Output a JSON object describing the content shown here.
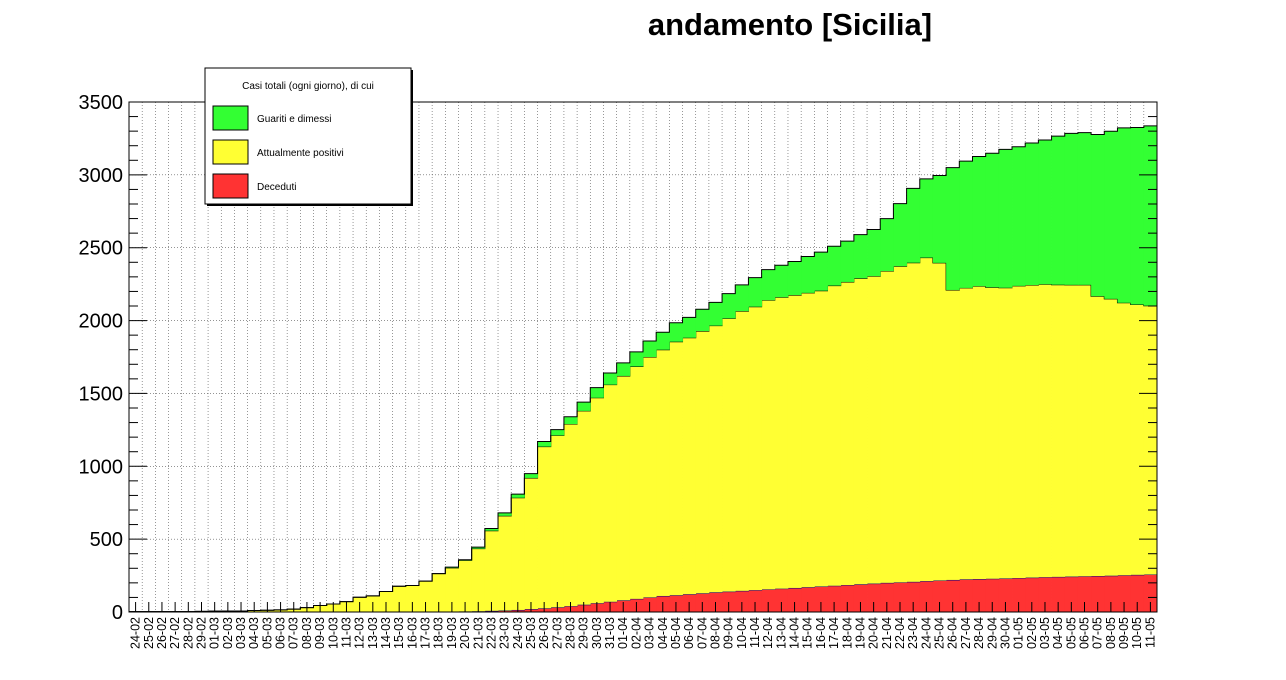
{
  "chart_data": {
    "type": "area",
    "title": "andamento [Sicilia]",
    "xlabel": "",
    "ylabel": "",
    "ylim": [
      0,
      3500
    ],
    "yticks": [
      "0",
      "500",
      "1000",
      "1500",
      "2000",
      "2500",
      "3000",
      "3500"
    ],
    "grid": true,
    "stacked": true,
    "legend": {
      "position": "top-left",
      "title": "Casi totali (ogni giorno), di cui"
    },
    "categories": [
      "24-02",
      "25-02",
      "26-02",
      "27-02",
      "28-02",
      "29-02",
      "01-03",
      "02-03",
      "03-03",
      "04-03",
      "05-03",
      "06-03",
      "07-03",
      "08-03",
      "09-03",
      "10-03",
      "11-03",
      "12-03",
      "13-03",
      "14-03",
      "15-03",
      "16-03",
      "17-03",
      "18-03",
      "19-03",
      "20-03",
      "21-03",
      "22-03",
      "23-03",
      "24-03",
      "25-03",
      "26-03",
      "27-03",
      "28-03",
      "29-03",
      "30-03",
      "31-03",
      "01-04",
      "02-04",
      "03-04",
      "04-04",
      "05-04",
      "06-04",
      "07-04",
      "08-04",
      "09-04",
      "10-04",
      "11-04",
      "12-04",
      "13-04",
      "14-04",
      "15-04",
      "16-04",
      "17-04",
      "18-04",
      "19-04",
      "20-04",
      "21-04",
      "22-04",
      "23-04",
      "24-04",
      "25-04",
      "26-04",
      "27-04",
      "28-04",
      "29-04",
      "30-04",
      "01-05",
      "02-05",
      "03-05",
      "04-05",
      "05-05",
      "06-05",
      "07-05",
      "08-05",
      "09-05",
      "10-05",
      "11-05"
    ],
    "series": [
      {
        "name": "Deceduti",
        "color": "#ff3333",
        "values": [
          0,
          0,
          0,
          0,
          0,
          0,
          0,
          0,
          0,
          0,
          0,
          0,
          0,
          0,
          0,
          0,
          1,
          1,
          1,
          1,
          2,
          2,
          2,
          3,
          3,
          4,
          5,
          8,
          10,
          14,
          20,
          25,
          32,
          40,
          50,
          60,
          70,
          80,
          90,
          100,
          110,
          115,
          122,
          128,
          135,
          140,
          145,
          150,
          155,
          160,
          165,
          170,
          175,
          180,
          185,
          190,
          195,
          200,
          203,
          207,
          212,
          216,
          220,
          224,
          226,
          228,
          230,
          233,
          236,
          239,
          241,
          243,
          245,
          247,
          249,
          252,
          255,
          257
        ]
      },
      {
        "name": "Attualmente positivi",
        "color": "#ffff33",
        "values": [
          3,
          3,
          3,
          3,
          3,
          4,
          6,
          7,
          7,
          10,
          12,
          15,
          20,
          30,
          45,
          55,
          70,
          100,
          110,
          140,
          175,
          180,
          210,
          260,
          300,
          350,
          430,
          550,
          650,
          770,
          900,
          1110,
          1180,
          1250,
          1330,
          1410,
          1490,
          1540,
          1595,
          1650,
          1690,
          1740,
          1760,
          1800,
          1830,
          1875,
          1920,
          1945,
          1985,
          2000,
          2010,
          2020,
          2030,
          2060,
          2080,
          2100,
          2110,
          2140,
          2170,
          2190,
          2220,
          2180,
          1990,
          2000,
          2010,
          2000,
          1995,
          2005,
          2008,
          2010,
          2005,
          2002,
          2000,
          1920,
          1900,
          1870,
          1855,
          1845
        ]
      },
      {
        "name": "Guariti e dimessi",
        "color": "#33ff33",
        "values": [
          0,
          0,
          0,
          0,
          0,
          0,
          0,
          0,
          0,
          0,
          0,
          0,
          0,
          0,
          0,
          0,
          0,
          0,
          0,
          0,
          0,
          0,
          0,
          0,
          5,
          5,
          10,
          15,
          20,
          25,
          30,
          35,
          40,
          50,
          60,
          70,
          80,
          90,
          100,
          110,
          120,
          130,
          140,
          150,
          160,
          170,
          180,
          200,
          210,
          220,
          230,
          250,
          265,
          270,
          280,
          300,
          320,
          360,
          430,
          510,
          540,
          600,
          840,
          870,
          890,
          920,
          950,
          955,
          975,
          990,
          1020,
          1040,
          1045,
          1110,
          1150,
          1200,
          1215,
          1234
        ]
      }
    ]
  }
}
